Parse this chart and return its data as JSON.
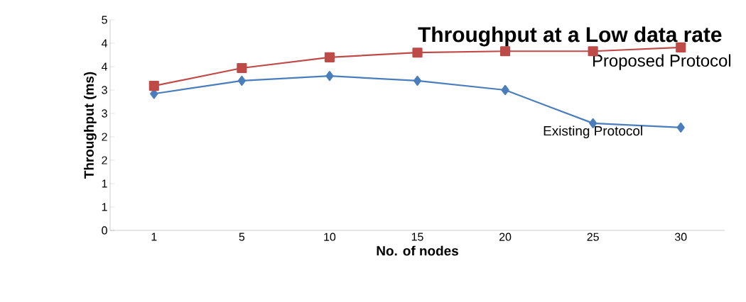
{
  "chart_data": {
    "type": "line",
    "title": "Throughput at a Low data rate",
    "xlabel": "No. of nodes",
    "ylabel": "Throughput (ms)",
    "categories": [
      "1",
      "5",
      "10",
      "15",
      "20",
      "25",
      "30"
    ],
    "series": [
      {
        "name": "Existing Protocol",
        "color": "#4a7ebb",
        "marker": "diamond",
        "values": [
          2.92,
          3.2,
          3.3,
          3.2,
          3.0,
          2.29,
          2.2
        ]
      },
      {
        "name": "Proposed Protocol",
        "color": "#be4b48",
        "marker": "square",
        "values": [
          3.09,
          3.47,
          3.7,
          3.8,
          3.83,
          3.83,
          3.91
        ]
      }
    ],
    "ylim": [
      0,
      4.5
    ],
    "yticks": [
      {
        "value": 0,
        "label": "0"
      },
      {
        "value": 0.5,
        "label": "1"
      },
      {
        "value": 1,
        "label": "1"
      },
      {
        "value": 1.5,
        "label": "2"
      },
      {
        "value": 2,
        "label": "2"
      },
      {
        "value": 2.5,
        "label": "3"
      },
      {
        "value": 3,
        "label": "3"
      },
      {
        "value": 3.5,
        "label": "4"
      },
      {
        "value": 4,
        "label": "4"
      },
      {
        "value": 4.5,
        "label": "5"
      }
    ],
    "grid": false,
    "legend": false,
    "line_style": "solid"
  }
}
